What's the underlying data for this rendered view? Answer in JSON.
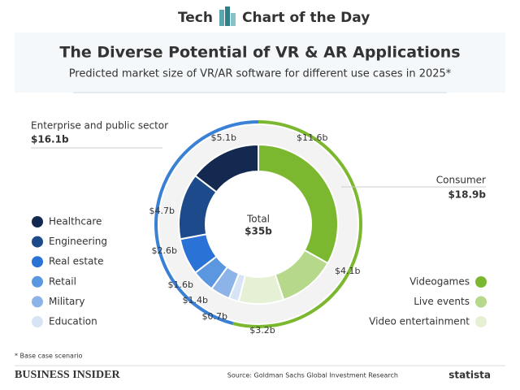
{
  "header": {
    "left": "Tech",
    "right": "Chart of the Day"
  },
  "chart_data": {
    "type": "donut",
    "title": "The Diverse Potential of VR & AR Applications",
    "subtitle": "Predicted market size of VR/AR software for different use cases in 2025*",
    "total": {
      "label": "Total",
      "value": 35,
      "value_label": "$35b"
    },
    "groups": [
      {
        "name": "Consumer",
        "value": 18.9,
        "value_label": "$18.9b",
        "color": "#7cb82f",
        "series": [
          {
            "name": "Videogames",
            "value": 11.6,
            "value_label": "$11.6b",
            "color": "#7cb82f"
          },
          {
            "name": "Live events",
            "value": 4.1,
            "value_label": "$4.1b",
            "color": "#b5d88a"
          },
          {
            "name": "Video entertainment",
            "value": 3.2,
            "value_label": "$3.2b",
            "color": "#e5f0d5"
          }
        ]
      },
      {
        "name": "Enterprise and public sector",
        "value": 16.1,
        "value_label": "$16.1b",
        "color": "#3a80d4",
        "series": [
          {
            "name": "Healthcare",
            "value": 5.1,
            "value_label": "$5.1b",
            "color": "#13294f"
          },
          {
            "name": "Engineering",
            "value": 4.7,
            "value_label": "$4.7b",
            "color": "#1d4a8a"
          },
          {
            "name": "Real estate",
            "value": 2.6,
            "value_label": "$2.6b",
            "color": "#2a72d6"
          },
          {
            "name": "Retail",
            "value": 1.6,
            "value_label": "$1.6b",
            "color": "#5b96e0"
          },
          {
            "name": "Military",
            "value": 1.4,
            "value_label": "$1.4b",
            "color": "#8db4e8"
          },
          {
            "name": "Education",
            "value": 0.7,
            "value_label": "$0.7b",
            "color": "#d6e4f5"
          }
        ]
      }
    ]
  },
  "note": "* Base case scenario",
  "brand": "BUSINESS INSIDER",
  "source": "Source: Goldman Sachs Global Investment Research",
  "statista": "statista"
}
